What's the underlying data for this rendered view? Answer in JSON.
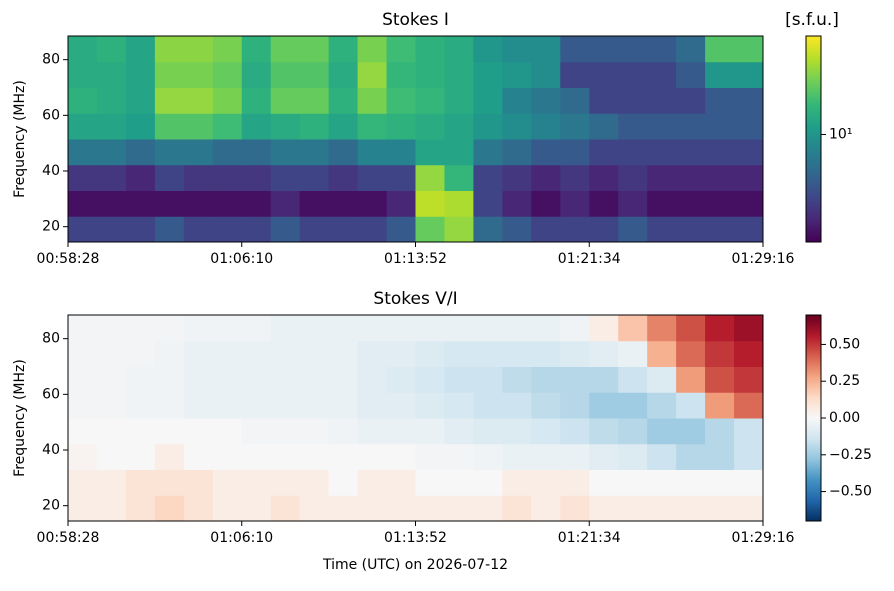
{
  "chart_data": [
    {
      "type": "heatmap",
      "title": "Stokes I",
      "ylabel": "Frequency (MHz)",
      "colorbar_label": "[s.f.u.]",
      "colormap": "viridis",
      "color_scale": "log",
      "clim": [
        2.2,
        40
      ],
      "cticks": [
        {
          "value": 10,
          "label": "10¹"
        }
      ],
      "xlim": [
        "00:58:28",
        "01:29:16"
      ],
      "xticks": [
        "00:58:28",
        "01:06:10",
        "01:13:52",
        "01:21:34",
        "01:29:16"
      ],
      "ylim": [
        14.5,
        88.5
      ],
      "yticks": [
        20,
        40,
        60,
        80
      ],
      "x": [
        "00:58:28",
        "00:59:45",
        "01:01:02",
        "01:02:19",
        "01:03:36",
        "01:04:53",
        "01:06:10",
        "01:07:27",
        "01:08:44",
        "01:10:01",
        "01:11:18",
        "01:12:35",
        "01:13:52",
        "01:15:09",
        "01:16:26",
        "01:17:43",
        "01:19:00",
        "01:20:17",
        "01:21:34",
        "01:22:51",
        "01:24:08",
        "01:25:25",
        "01:26:42",
        "01:27:59"
      ],
      "y": [
        14.5,
        23.75,
        33,
        42.25,
        51.5,
        60.75,
        70,
        79.25
      ],
      "z": [
        [
          4,
          4,
          4,
          5,
          4,
          4,
          4,
          5,
          4,
          4,
          4,
          5,
          20,
          25,
          6,
          5,
          4,
          4,
          4,
          5,
          4,
          4,
          4,
          4
        ],
        [
          2.5,
          2.5,
          2.5,
          2.5,
          2.5,
          2.5,
          2.5,
          3,
          2.5,
          2.5,
          2.5,
          3,
          30,
          28,
          4,
          3,
          2.5,
          3,
          2.5,
          3,
          2.5,
          2.5,
          2.5,
          2.5
        ],
        [
          3.5,
          3.5,
          3,
          4,
          3.5,
          3.5,
          3.5,
          4,
          4,
          3.5,
          4,
          4,
          25,
          15,
          4,
          3.5,
          3,
          3.5,
          3,
          3.5,
          3,
          3,
          3,
          3
        ],
        [
          7,
          7,
          6,
          7,
          7,
          6,
          6,
          7,
          7,
          6,
          8,
          8,
          12,
          12,
          7,
          6,
          5,
          5,
          4,
          4,
          4,
          4,
          4,
          4
        ],
        [
          12,
          12,
          11,
          18,
          18,
          16,
          12,
          13,
          14,
          12,
          15,
          14,
          13,
          12,
          10,
          9,
          8,
          7,
          6,
          5,
          5,
          5,
          5,
          5
        ],
        [
          14,
          13,
          12,
          25,
          25,
          22,
          14,
          20,
          20,
          14,
          22,
          16,
          15,
          13,
          11,
          8,
          7,
          6,
          4,
          4,
          4,
          4,
          5,
          5
        ],
        [
          13,
          13,
          12,
          22,
          22,
          20,
          13,
          18,
          18,
          13,
          25,
          15,
          14,
          13,
          11,
          10,
          9,
          4,
          4,
          4,
          4,
          5,
          10,
          10
        ],
        [
          13,
          14,
          12,
          24,
          24,
          22,
          14,
          20,
          20,
          14,
          22,
          16,
          14,
          13,
          10,
          9,
          9,
          5,
          5,
          5,
          5,
          6,
          18,
          18
        ]
      ]
    },
    {
      "type": "heatmap",
      "title": "Stokes V/I",
      "ylabel": "Frequency (MHz)",
      "xlabel": "Time (UTC) on 2026-07-12",
      "colormap": "RdBu_r",
      "color_scale": "linear",
      "clim": [
        -0.7,
        0.7
      ],
      "cticks": [
        {
          "value": -0.5,
          "label": "−0.50"
        },
        {
          "value": -0.25,
          "label": "−0.25"
        },
        {
          "value": 0,
          "label": "0.00"
        },
        {
          "value": 0.25,
          "label": "0.25"
        },
        {
          "value": 0.5,
          "label": "0.50"
        }
      ],
      "xlim": [
        "00:58:28",
        "01:29:16"
      ],
      "xticks": [
        "00:58:28",
        "01:06:10",
        "01:13:52",
        "01:21:34",
        "01:29:16"
      ],
      "ylim": [
        14.5,
        88.5
      ],
      "yticks": [
        20,
        40,
        60,
        80
      ],
      "x": [
        "00:58:28",
        "00:59:45",
        "01:01:02",
        "01:02:19",
        "01:03:36",
        "01:04:53",
        "01:06:10",
        "01:07:27",
        "01:08:44",
        "01:10:01",
        "01:11:18",
        "01:12:35",
        "01:13:52",
        "01:15:09",
        "01:16:26",
        "01:17:43",
        "01:19:00",
        "01:20:17",
        "01:21:34",
        "01:22:51",
        "01:24:08",
        "01:25:25",
        "01:26:42",
        "01:27:59"
      ],
      "y": [
        14.5,
        23.75,
        33,
        42.25,
        51.5,
        60.75,
        70,
        79.25
      ],
      "z": [
        [
          0.05,
          0.05,
          0.1,
          0.15,
          0.1,
          0.05,
          0.05,
          0.1,
          0.05,
          0.05,
          0.05,
          0.05,
          0.05,
          0.05,
          0.05,
          0.1,
          0.05,
          0.1,
          0.05,
          0.05,
          0.05,
          0.05,
          0.05,
          0.05
        ],
        [
          0.05,
          0.05,
          0.1,
          0.1,
          0.1,
          0.05,
          0.05,
          0.05,
          0.05,
          0,
          0.05,
          0.05,
          0,
          0,
          0,
          0.05,
          0.05,
          0.05,
          0,
          0,
          0,
          0,
          0,
          0
        ],
        [
          0.02,
          0,
          0,
          0.05,
          0,
          0,
          0,
          0,
          0,
          0,
          0,
          0,
          -0.02,
          -0.02,
          -0.03,
          -0.05,
          -0.05,
          -0.05,
          -0.08,
          -0.1,
          -0.15,
          -0.2,
          -0.2,
          -0.15
        ],
        [
          0,
          0,
          0,
          0,
          0,
          0,
          -0.02,
          -0.02,
          -0.02,
          -0.03,
          -0.05,
          -0.05,
          -0.05,
          -0.08,
          -0.1,
          -0.1,
          -0.12,
          -0.15,
          -0.18,
          -0.2,
          -0.25,
          -0.25,
          -0.2,
          -0.15
        ],
        [
          -0.02,
          -0.02,
          -0.03,
          -0.03,
          -0.05,
          -0.05,
          -0.05,
          -0.05,
          -0.05,
          -0.05,
          -0.08,
          -0.08,
          -0.1,
          -0.12,
          -0.15,
          -0.15,
          -0.18,
          -0.2,
          -0.25,
          -0.25,
          -0.2,
          -0.15,
          0.3,
          0.4
        ],
        [
          -0.02,
          -0.02,
          -0.03,
          -0.03,
          -0.05,
          -0.05,
          -0.05,
          -0.05,
          -0.05,
          -0.05,
          -0.08,
          -0.1,
          -0.12,
          -0.15,
          -0.15,
          -0.18,
          -0.2,
          -0.2,
          -0.2,
          -0.15,
          -0.1,
          0.3,
          0.45,
          0.5
        ],
        [
          -0.02,
          -0.02,
          -0.02,
          -0.03,
          -0.05,
          -0.05,
          -0.05,
          -0.05,
          -0.05,
          -0.05,
          -0.08,
          -0.08,
          -0.1,
          -0.12,
          -0.12,
          -0.12,
          -0.12,
          -0.1,
          -0.08,
          -0.05,
          0.25,
          0.4,
          0.5,
          0.55
        ],
        [
          -0.02,
          -0.02,
          -0.02,
          -0.02,
          -0.03,
          -0.03,
          -0.03,
          -0.05,
          -0.05,
          -0.05,
          -0.05,
          -0.05,
          -0.05,
          -0.05,
          -0.05,
          -0.05,
          -0.05,
          -0.03,
          0.05,
          0.2,
          0.35,
          0.45,
          0.55,
          0.6
        ]
      ]
    }
  ]
}
